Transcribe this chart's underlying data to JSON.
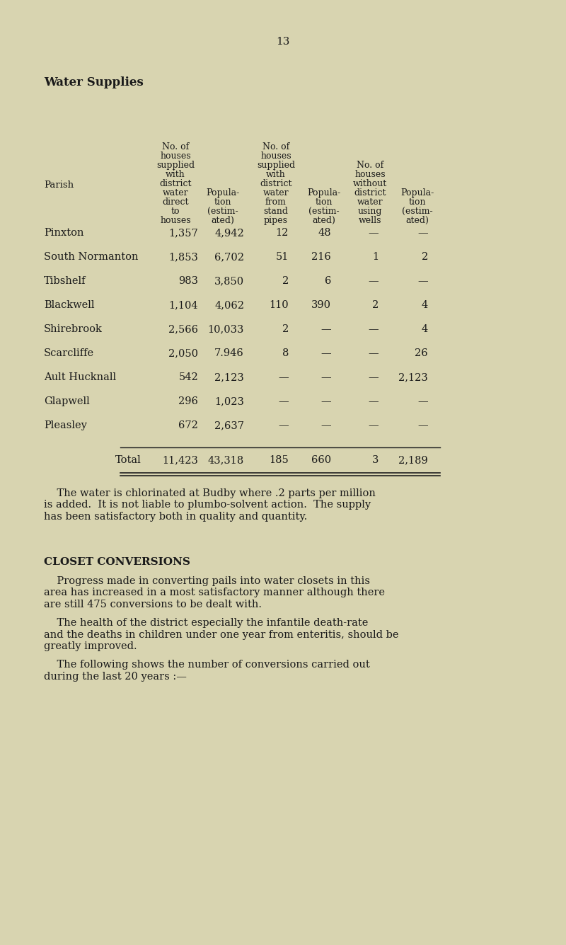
{
  "background_color": "#d8d4b0",
  "page_number": "13",
  "title": "Water Supplies",
  "rows": [
    [
      "Pinxton",
      "1,357",
      "4,942",
      "12",
      "48",
      "—",
      "—"
    ],
    [
      "South Normanton",
      "1,853",
      "6,702",
      "51",
      "216",
      "1",
      "2"
    ],
    [
      "Tibshelf",
      "983",
      "3,850",
      "2",
      "6",
      "—",
      "—"
    ],
    [
      "Blackwell",
      "1,104",
      "4,062",
      "110",
      "390",
      "2",
      "4"
    ],
    [
      "Shirebrook",
      "2,566",
      "10,033",
      "2",
      "—",
      "—",
      "4"
    ],
    [
      "Scarcliffe",
      "2,050",
      "7.946",
      "8",
      "—",
      "—",
      "26"
    ],
    [
      "Ault Hucknall",
      "542",
      "2,123",
      "—",
      "—",
      "—",
      "2,123"
    ],
    [
      "Glapwell",
      "296",
      "1,023",
      "—",
      "—",
      "—",
      "—"
    ],
    [
      "Pleasley",
      "672",
      "2,637",
      "—",
      "—",
      "—",
      "—"
    ]
  ],
  "total_row": [
    "Total",
    "11,423",
    "43,318",
    "185",
    "660",
    "3",
    "2,189"
  ],
  "paragraph1_lines": [
    "    The water is chlorinated at Budby where .2 parts per million",
    "is added.  It is not liable to plumbo-solvent action.  The supply",
    "has been satisfactory both in quality and quantity."
  ],
  "section_title": "CLOSET CONVERSIONS",
  "paragraph2_lines": [
    "    Progress made in converting pails into water closets in this",
    "area has increased in a most satisfactory manner although there",
    "are still 475 conversions to be dealt with."
  ],
  "paragraph3_lines": [
    "    The health of the district especially the infantile death-rate",
    "and the deaths in children under one year from enteritis, should be",
    "greatly improved."
  ],
  "paragraph4_lines": [
    "    The following shows the number of conversions carried out",
    "during the last 20 years :—"
  ]
}
